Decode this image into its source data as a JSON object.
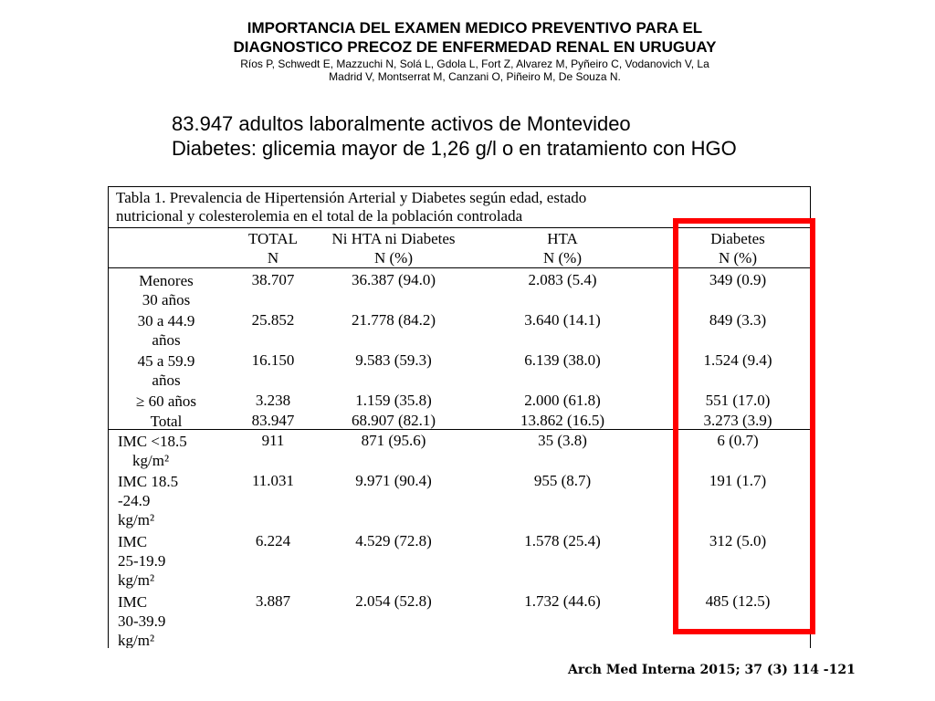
{
  "header": {
    "title_line1": "IMPORTANCIA DEL EXAMEN MEDICO PREVENTIVO PARA EL",
    "title_line2": "DIAGNOSTICO PRECOZ DE ENFERMEDAD RENAL EN URUGUAY",
    "authors_line1": "Ríos P, Schwedt E, Mazzuchi N, Solá L, Gdola L, Fort Z, Alvarez M, Pyñeiro C, Vodanovich V, La",
    "authors_line2": "Madrid V, Montserrat M, Canzani O, Piñeiro M, De Souza N."
  },
  "subheading": {
    "line1": "83.947 adultos laboralmente activos de Montevideo",
    "line2": "Diabetes: glicemia mayor de 1,26 g/l o en tratamiento con HGO"
  },
  "table": {
    "caption_line1": "Tabla 1. Prevalencia de Hipertensión Arterial y Diabetes según edad, estado",
    "caption_line2": "nutricional y colesterolemia en el total de la población controlada",
    "headers": [
      {
        "line1": "TOTAL",
        "line2": "N"
      },
      {
        "line1": "Ni HTA ni Diabetes",
        "line2": "N (%)"
      },
      {
        "line1": "HTA",
        "line2": "N (%)"
      },
      {
        "line1": "Diabetes",
        "line2": "N (%)"
      }
    ],
    "rows": [
      {
        "label": [
          "Menores",
          "30 años"
        ],
        "total": "38.707",
        "ni": "36.387 (94.0)",
        "hta": "2.083 (5.4)",
        "diabetes": "349 (0.9)"
      },
      {
        "label": [
          "30 a 44.9",
          "años"
        ],
        "total": "25.852",
        "ni": "21.778 (84.2)",
        "hta": "3.640 (14.1)",
        "diabetes": "849 (3.3)"
      },
      {
        "label": [
          "45 a 59.9",
          "años"
        ],
        "total": "16.150",
        "ni": "9.583 (59.3)",
        "hta": "6.139 (38.0)",
        "diabetes": "1.524 (9.4)"
      },
      {
        "label": [
          "≥ 60 años"
        ],
        "total": "3.238",
        "ni": "1.159 (35.8)",
        "hta": "2.000 (61.8)",
        "diabetes": "551 (17.0)"
      },
      {
        "label": [
          "Total"
        ],
        "total": "83.947",
        "ni": "68.907 (82.1)",
        "hta": "13.862 (16.5)",
        "diabetes": "3.273 (3.9)"
      },
      {
        "label": [
          "IMC <18.5",
          "kg/m²"
        ],
        "total": "911",
        "ni": "871 (95.6)",
        "hta": "35 (3.8)",
        "diabetes": "6 (0.7)"
      },
      {
        "label": [
          "IMC 18.5",
          "-24.9",
          "kg/m²"
        ],
        "total": "11.031",
        "ni": "9.971 (90.4)",
        "hta": "955 (8.7)",
        "diabetes": "191 (1.7)"
      },
      {
        "label": [
          "IMC",
          "25-19.9",
          "kg/m²"
        ],
        "total": "6.224",
        "ni": "4.529 (72.8)",
        "hta": "1.578 (25.4)",
        "diabetes": "312 (5.0)"
      },
      {
        "label": [
          "IMC",
          "30-39.9",
          "kg/m²"
        ],
        "total": "3.887",
        "ni": "2.054 (52.8)",
        "hta": "1.732 (44.6)",
        "diabetes": "485 (12.5)"
      }
    ]
  },
  "highlight_color": "#ff0000",
  "citation": "Arch Med Interna 2015; 37 (3) 114 -121"
}
